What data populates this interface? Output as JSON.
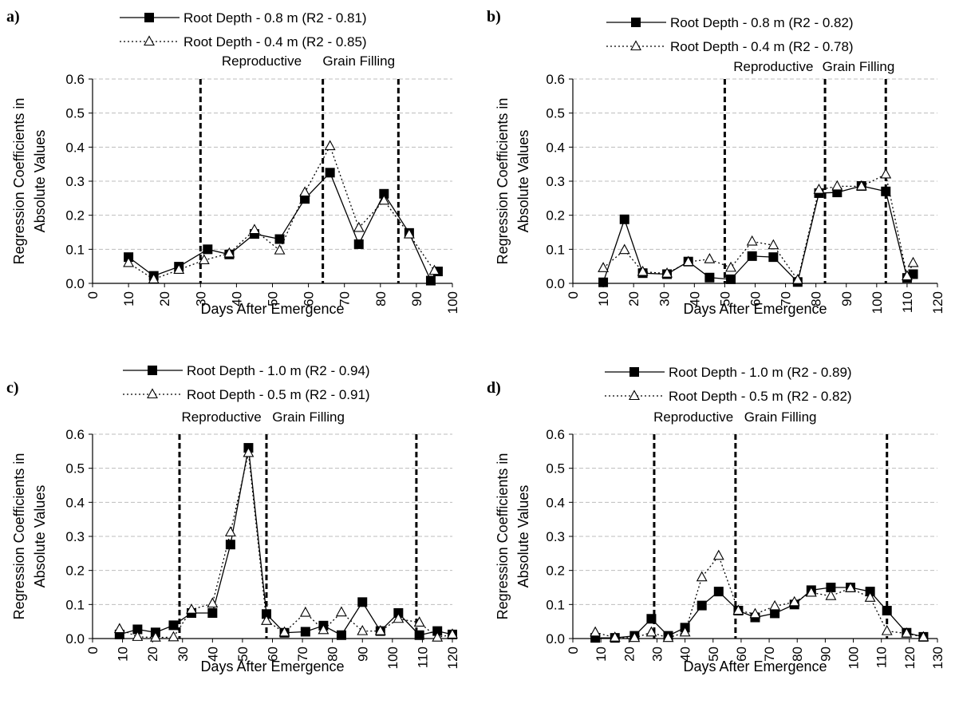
{
  "colors": {
    "grid": "#bdbdbd",
    "line": "#000000",
    "marker_filled": "#000000",
    "marker_open": "#ffffff"
  },
  "chart_data": [
    {
      "panel": "a)",
      "type": "line",
      "xlabel": "Days After Emergence",
      "ylabel": [
        "Regression Coefficients in",
        "Absolute Values"
      ],
      "xlim": [
        0,
        100
      ],
      "xticks": [
        0,
        10,
        20,
        30,
        40,
        50,
        60,
        70,
        80,
        90,
        100
      ],
      "ylim": [
        0,
        0.6
      ],
      "yticks": [
        "0.0",
        "0.1",
        "0.2",
        "0.3",
        "0.4",
        "0.5",
        "0.6"
      ],
      "grid": true,
      "phase_lines": [
        30,
        64,
        85
      ],
      "phase_labels": [
        {
          "text": "Reproductive",
          "x": 47
        },
        {
          "text": "Grain Filling",
          "x": 74
        }
      ],
      "series": [
        {
          "name": "Root Depth - 0.8 m (R2 - 0.81)",
          "style": "solid",
          "marker": "square",
          "x": [
            10,
            17,
            24,
            32,
            38,
            45,
            52,
            59,
            66,
            74,
            81,
            88,
            94,
            96
          ],
          "y": [
            0.077,
            0.022,
            0.049,
            0.1,
            0.085,
            0.145,
            0.13,
            0.248,
            0.325,
            0.115,
            0.263,
            0.148,
            0.008,
            0.035
          ]
        },
        {
          "name": "Root Depth - 0.4 m (R2 - 0.85)",
          "style": "dotted",
          "marker": "triangle",
          "x": [
            10,
            17,
            24,
            31,
            38,
            45,
            52,
            59,
            66,
            74,
            81,
            88,
            95
          ],
          "y": [
            0.06,
            0.012,
            0.04,
            0.068,
            0.088,
            0.157,
            0.097,
            0.267,
            0.403,
            0.163,
            0.243,
            0.144,
            0.037
          ]
        }
      ]
    },
    {
      "panel": "b)",
      "type": "line",
      "xlabel": "Days After Emergence",
      "ylabel": [
        "Regression Coefficients in",
        "Absolute Values"
      ],
      "xlim": [
        0,
        120
      ],
      "xticks": [
        0,
        10,
        20,
        30,
        40,
        50,
        60,
        70,
        80,
        90,
        100,
        110,
        120
      ],
      "ylim": [
        0,
        0.6
      ],
      "yticks": [
        "0.0",
        "0.1",
        "0.2",
        "0.3",
        "0.4",
        "0.5",
        "0.6"
      ],
      "grid": true,
      "phase_lines": [
        50,
        83,
        103
      ],
      "phase_labels": [
        {
          "text": "Reproductive",
          "x": 66
        },
        {
          "text": "Grain Filling",
          "x": 94
        }
      ],
      "series": [
        {
          "name": "Root Depth - 0.8 m (R2 - 0.82)",
          "style": "solid",
          "marker": "square",
          "x": [
            10,
            17,
            23,
            31,
            38,
            45,
            52,
            59,
            66,
            74,
            81,
            87,
            95,
            103,
            110,
            112
          ],
          "y": [
            0.003,
            0.188,
            0.03,
            0.027,
            0.064,
            0.017,
            0.012,
            0.08,
            0.077,
            0.004,
            0.265,
            0.267,
            0.286,
            0.27,
            0.016,
            0.027
          ]
        },
        {
          "name": "Root Depth - 0.4 m (R2 - 0.78)",
          "style": "dotted",
          "marker": "triangle",
          "x": [
            10,
            17,
            23,
            31,
            38,
            45,
            52,
            59,
            66,
            74,
            81,
            87,
            95,
            103,
            110,
            112
          ],
          "y": [
            0.045,
            0.098,
            0.034,
            0.029,
            0.063,
            0.071,
            0.046,
            0.123,
            0.112,
            0.01,
            0.275,
            0.285,
            0.285,
            0.32,
            0.021,
            0.06
          ]
        }
      ]
    },
    {
      "panel": "c)",
      "type": "line",
      "xlabel": "Days After Emergence",
      "ylabel": [
        "Regression Coefficients in",
        "Absolute Values"
      ],
      "xlim": [
        0,
        120
      ],
      "xticks": [
        0,
        10,
        20,
        30,
        40,
        50,
        60,
        70,
        80,
        90,
        100,
        110,
        120
      ],
      "ylim": [
        0,
        0.6
      ],
      "yticks": [
        "0.0",
        "0.1",
        "0.2",
        "0.3",
        "0.4",
        "0.5",
        "0.6"
      ],
      "grid": true,
      "phase_lines": [
        29,
        58,
        108
      ],
      "phase_labels": [
        {
          "text": "Reproductive",
          "x": 43
        },
        {
          "text": "Grain Filling",
          "x": 72
        }
      ],
      "series": [
        {
          "name": "Root Depth - 1.0 m (R2 - 0.94)",
          "style": "solid",
          "marker": "square",
          "x": [
            9,
            15,
            21,
            27,
            33,
            40,
            46,
            52,
            58,
            64,
            71,
            77,
            83,
            90,
            96,
            102,
            109,
            115,
            120
          ],
          "y": [
            0.012,
            0.027,
            0.018,
            0.039,
            0.075,
            0.075,
            0.276,
            0.56,
            0.072,
            0.017,
            0.02,
            0.038,
            0.01,
            0.107,
            0.022,
            0.075,
            0.01,
            0.022,
            0.012
          ]
        },
        {
          "name": "Root Depth - 0.5 m (R2 - 0.91)",
          "style": "dotted",
          "marker": "triangle",
          "x": [
            9,
            15,
            21,
            27,
            33,
            40,
            46,
            52,
            58,
            64,
            71,
            77,
            83,
            90,
            96,
            102,
            109,
            115,
            120
          ],
          "y": [
            0.028,
            0.005,
            0.003,
            0.004,
            0.085,
            0.103,
            0.312,
            0.545,
            0.052,
            0.018,
            0.076,
            0.025,
            0.077,
            0.022,
            0.022,
            0.058,
            0.047,
            0.003,
            0.012
          ]
        }
      ]
    },
    {
      "panel": "d)",
      "type": "line",
      "xlabel": "Days After Emergence",
      "ylabel": [
        "Regression Coefficients in",
        "Absolute Values"
      ],
      "xlim": [
        0,
        130
      ],
      "xticks": [
        0,
        10,
        20,
        30,
        40,
        50,
        60,
        70,
        80,
        90,
        100,
        110,
        120,
        130
      ],
      "ylim": [
        0,
        0.6
      ],
      "yticks": [
        "0.0",
        "0.1",
        "0.2",
        "0.3",
        "0.4",
        "0.5",
        "0.6"
      ],
      "grid": true,
      "phase_lines": [
        29,
        58,
        112
      ],
      "phase_labels": [
        {
          "text": "Reproductive",
          "x": 43
        },
        {
          "text": "Grain Filling",
          "x": 74
        }
      ],
      "series": [
        {
          "name": "Root Depth - 1.0 m (R2 - 0.89)",
          "style": "solid",
          "marker": "square",
          "x": [
            8,
            15,
            22,
            28,
            34,
            40,
            46,
            52,
            59,
            65,
            72,
            79,
            85,
            92,
            99,
            106,
            112,
            119,
            125
          ],
          "y": [
            0.002,
            0.002,
            0.008,
            0.058,
            0.008,
            0.032,
            0.097,
            0.138,
            0.082,
            0.062,
            0.074,
            0.1,
            0.142,
            0.15,
            0.15,
            0.138,
            0.082,
            0.017,
            0.005
          ]
        },
        {
          "name": "Root Depth - 0.5 m (R2 - 0.82)",
          "style": "dotted",
          "marker": "triangle",
          "x": [
            8,
            15,
            22,
            28,
            34,
            40,
            46,
            52,
            59,
            65,
            72,
            79,
            85,
            92,
            99,
            106,
            112,
            119,
            125
          ],
          "y": [
            0.018,
            0.003,
            0.002,
            0.018,
            0.002,
            0.018,
            0.18,
            0.243,
            0.082,
            0.072,
            0.095,
            0.107,
            0.135,
            0.125,
            0.148,
            0.12,
            0.022,
            0.015,
            0.004
          ]
        }
      ]
    }
  ]
}
